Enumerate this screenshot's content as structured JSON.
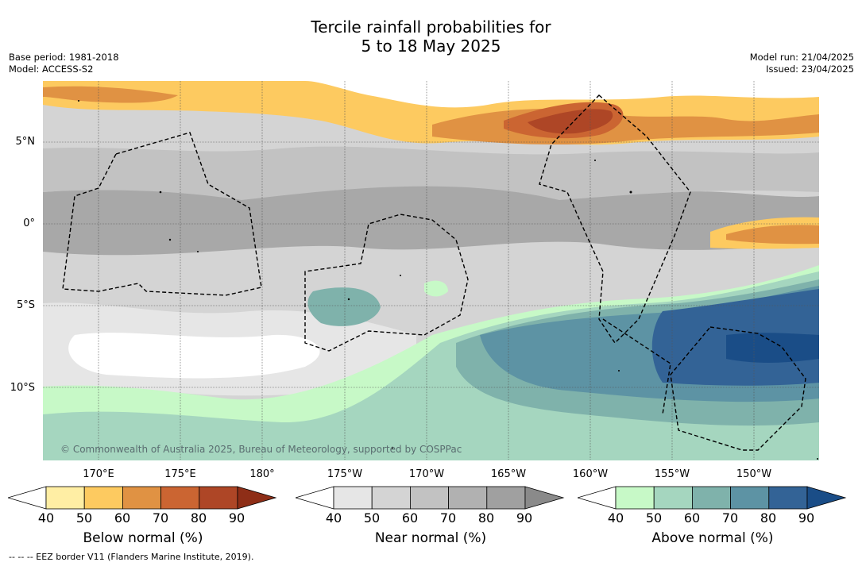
{
  "title_line1": "Tercile rainfall probabilities for",
  "title_line2": "5 to 18 May 2025",
  "base_period": "Base period: 1981-2018",
  "model": "Model: ACCESS-S2",
  "model_run": "Model run: 21/04/2025",
  "issued": "Issued: 23/04/2025",
  "lat_labels": [
    "5°N",
    "0°",
    "5°S",
    "10°S"
  ],
  "lon_labels": [
    "170°E",
    "175°E",
    "180°",
    "175°W",
    "170°W",
    "165°W",
    "160°W",
    "155°W",
    "150°W"
  ],
  "copyright": "© Commonwealth of Australia 2025, Bureau of Meteorology, supported by COSPPac",
  "colorbars": [
    {
      "title": "Below normal (%)",
      "ticks": [
        "40",
        "50",
        "60",
        "70",
        "80",
        "90"
      ],
      "colors": [
        "#ffeea4",
        "#fdca60",
        "#e09243",
        "#cb6532",
        "#ae4626",
        "#8e2e17"
      ]
    },
    {
      "title": "Near normal (%)",
      "ticks": [
        "40",
        "50",
        "60",
        "70",
        "80",
        "90"
      ],
      "colors": [
        "#e6e6e6",
        "#d4d4d4",
        "#c2c2c2",
        "#b1b1b1",
        "#a0a0a0",
        "#8a8a8a"
      ]
    },
    {
      "title": "Above normal (%)",
      "ticks": [
        "40",
        "50",
        "60",
        "70",
        "80",
        "90"
      ],
      "colors": [
        "#c7f9c7",
        "#a5d6bf",
        "#7fb2ab",
        "#5d93a4",
        "#336396",
        "#1a4d87"
      ]
    }
  ],
  "footnote": "--  --  -- EEZ border V11 (Flanders Marine Institute, 2019)."
}
